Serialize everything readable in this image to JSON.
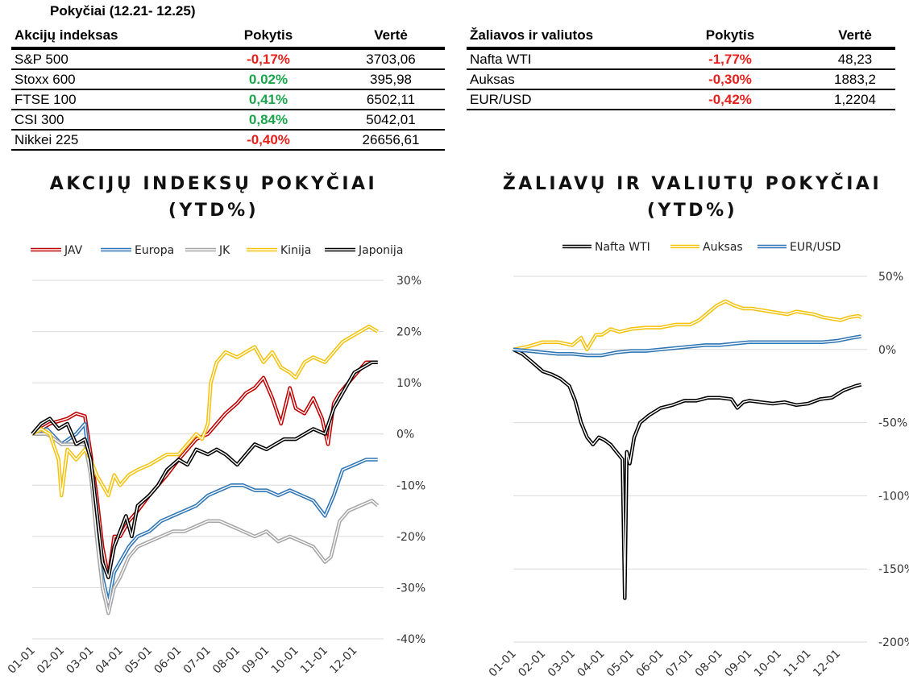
{
  "header": {
    "title": "Pokyčiai (12.21- 12.25)"
  },
  "indices_table": {
    "columns": [
      "Akcijų indeksas",
      "Pokytis",
      "Vertė"
    ],
    "rows": [
      {
        "name": "S&P 500",
        "change": "-0,17%",
        "value": "3703,06",
        "trend": "neg"
      },
      {
        "name": "Stoxx 600",
        "change": "0.02%",
        "value": "395,98",
        "trend": "pos"
      },
      {
        "name": "FTSE 100",
        "change": "0,41%",
        "value": "6502,11",
        "trend": "pos"
      },
      {
        "name": "CSI 300",
        "change": "0,84%",
        "value": "5042,01",
        "trend": "pos"
      },
      {
        "name": "Nikkei 225",
        "change": "-0,40%",
        "value": "26656,61",
        "trend": "neg"
      }
    ]
  },
  "commodities_table": {
    "columns": [
      "Žaliavos ir valiutos",
      "Pokytis",
      "Vertė"
    ],
    "rows": [
      {
        "name": "Nafta WTI",
        "change": "-1,77%",
        "value": "48,23",
        "trend": "neg"
      },
      {
        "name": "Auksas",
        "change": "-0,30%",
        "value": "1883,2",
        "trend": "neg"
      },
      {
        "name": "EUR/USD",
        "change": "-0,42%",
        "value": "1,2204",
        "trend": "neg"
      }
    ]
  },
  "colors": {
    "negative": "#e8201c",
    "positive": "#1aa54b"
  },
  "chart_data": [
    {
      "type": "line",
      "title": "AKCIJŲ INDEKSŲ POKYČIAI (YTD%)",
      "title_lines": [
        "AKCIJŲ INDEKSŲ POKYČIAI",
        "(YTD%)"
      ],
      "x_ticks": [
        "01-01",
        "02-01",
        "03-01",
        "04-01",
        "05-01",
        "06-01",
        "07-01",
        "08-01",
        "09-01",
        "10-01",
        "11-01",
        "12-01"
      ],
      "x_range": [
        0,
        12
      ],
      "ylim": [
        -40,
        30
      ],
      "y_ticks": [
        30,
        20,
        10,
        0,
        -10,
        -20,
        -30,
        -40
      ],
      "y_tick_labels": [
        "30%",
        "20%",
        "10%",
        "0%",
        "-10%",
        "-20%",
        "-30%",
        "-40%"
      ],
      "y_axis_side": "right",
      "legend_position": "top",
      "series": [
        {
          "name": "JAV",
          "color": "#c00000",
          "x": [
            0,
            0.3,
            0.6,
            0.9,
            1.2,
            1.5,
            1.8,
            2.0,
            2.2,
            2.4,
            2.6,
            2.8,
            3.0,
            3.3,
            3.6,
            4.0,
            4.3,
            4.6,
            5.0,
            5.3,
            5.6,
            6.0,
            6.3,
            6.6,
            7.0,
            7.3,
            7.6,
            7.9,
            8.2,
            8.5,
            8.8,
            9.0,
            9.3,
            9.6,
            9.9,
            10.1,
            10.3,
            10.5,
            10.8,
            11.1,
            11.4,
            11.7,
            11.8
          ],
          "y": [
            0,
            1,
            2,
            2.5,
            3,
            4,
            3.5,
            -4,
            -12,
            -22,
            -28,
            -20,
            -20,
            -17,
            -15,
            -12,
            -10,
            -8,
            -5,
            -3,
            -1,
            0,
            2,
            4,
            6,
            8,
            9,
            11,
            7,
            2,
            9,
            5,
            4,
            7,
            3,
            -2,
            6,
            8,
            10,
            12,
            14,
            14,
            14
          ]
        },
        {
          "name": "Europa",
          "color": "#2e75b6",
          "x": [
            0,
            0.5,
            1.0,
            1.5,
            1.8,
            2.0,
            2.2,
            2.4,
            2.6,
            2.8,
            3.0,
            3.3,
            3.6,
            4.0,
            4.4,
            4.8,
            5.2,
            5.6,
            6.0,
            6.4,
            6.8,
            7.2,
            7.6,
            8.0,
            8.4,
            8.8,
            9.2,
            9.6,
            10.0,
            10.3,
            10.6,
            11.0,
            11.4,
            11.8
          ],
          "y": [
            0,
            1,
            -2,
            0,
            2,
            -8,
            -18,
            -28,
            -33,
            -27,
            -25,
            -22,
            -20,
            -19,
            -17,
            -16,
            -15,
            -14,
            -12,
            -11,
            -10,
            -10,
            -11,
            -11,
            -12,
            -11,
            -12,
            -13,
            -16,
            -12,
            -7,
            -6,
            -5,
            -5
          ]
        },
        {
          "name": "JK",
          "color": "#a6a6a6",
          "x": [
            0,
            0.5,
            1.0,
            1.5,
            1.8,
            2.0,
            2.2,
            2.4,
            2.6,
            2.8,
            3.0,
            3.3,
            3.6,
            4.0,
            4.4,
            4.8,
            5.2,
            5.6,
            6.0,
            6.4,
            6.8,
            7.2,
            7.6,
            8.0,
            8.4,
            8.8,
            9.2,
            9.6,
            10.0,
            10.2,
            10.5,
            10.8,
            11.2,
            11.6,
            11.8
          ],
          "y": [
            0,
            0,
            -2,
            -2,
            -2,
            -8,
            -20,
            -30,
            -35,
            -30,
            -28,
            -24,
            -22,
            -21,
            -20,
            -19,
            -19,
            -18,
            -17,
            -17,
            -18,
            -19,
            -20,
            -19,
            -21,
            -20,
            -21,
            -22,
            -25,
            -24,
            -17,
            -15,
            -14,
            -13,
            -14
          ]
        },
        {
          "name": "Kinija",
          "color": "#f4c20d",
          "x": [
            0,
            0.3,
            0.6,
            0.9,
            1.0,
            1.2,
            1.5,
            1.8,
            2.0,
            2.2,
            2.4,
            2.6,
            2.8,
            3.0,
            3.3,
            3.6,
            4.0,
            4.3,
            4.6,
            5.0,
            5.3,
            5.6,
            5.8,
            6.0,
            6.1,
            6.3,
            6.6,
            7.0,
            7.3,
            7.6,
            7.9,
            8.2,
            8.5,
            8.8,
            9.0,
            9.3,
            9.6,
            10.0,
            10.3,
            10.6,
            10.9,
            11.2,
            11.5,
            11.8
          ],
          "y": [
            0,
            1,
            0,
            -5,
            -12,
            -3,
            -5,
            -3,
            -5,
            -8,
            -10,
            -12,
            -8,
            -10,
            -8,
            -7,
            -6,
            -5,
            -4,
            -4,
            -2,
            0,
            -1,
            2,
            10,
            14,
            16,
            15,
            16,
            17,
            14,
            16,
            13,
            12,
            11,
            14,
            15,
            14,
            16,
            18,
            19,
            20,
            21,
            20
          ]
        },
        {
          "name": "Japonija",
          "color": "#000000",
          "x": [
            0,
            0.3,
            0.6,
            0.9,
            1.2,
            1.5,
            1.8,
            2.0,
            2.2,
            2.4,
            2.6,
            2.8,
            3.0,
            3.2,
            3.4,
            3.6,
            4.0,
            4.3,
            4.6,
            5.0,
            5.3,
            5.6,
            6.0,
            6.3,
            6.6,
            7.0,
            7.3,
            7.6,
            8.0,
            8.3,
            8.6,
            9.0,
            9.3,
            9.6,
            10.0,
            10.3,
            10.6,
            11.0,
            11.3,
            11.6,
            11.8
          ],
          "y": [
            0,
            2,
            3,
            1,
            2,
            -2,
            -1,
            -5,
            -15,
            -25,
            -28,
            -22,
            -19,
            -16,
            -20,
            -14,
            -12,
            -10,
            -7,
            -5,
            -6,
            -3,
            -4,
            -3,
            -4,
            -6,
            -4,
            -2,
            -3,
            -2,
            -1,
            -1,
            0,
            1,
            0,
            5,
            8,
            12,
            13,
            14,
            14
          ]
        }
      ]
    },
    {
      "type": "line",
      "title": "ŽALIAVŲ IR VALIUTŲ POKYČIAI (YTD%)",
      "title_lines": [
        "ŽALIAVŲ IR VALIUTŲ POKYČIAI",
        "(YTD%)"
      ],
      "x_ticks": [
        "01-01",
        "02-01",
        "03-01",
        "04-01",
        "05-01",
        "06-01",
        "07-01",
        "08-01",
        "09-01",
        "10-01",
        "11-01",
        "12-01"
      ],
      "x_range": [
        0,
        12
      ],
      "ylim": [
        -200,
        50
      ],
      "y_ticks": [
        50,
        0,
        -50,
        -100,
        -150,
        -200
      ],
      "y_tick_labels": [
        "50%",
        "0%",
        "-50%",
        "-100%",
        "-150%",
        "-200%"
      ],
      "y_axis_side": "right",
      "legend_position": "top",
      "series": [
        {
          "name": "Nafta WTI",
          "color": "#000000",
          "x": [
            0,
            0.3,
            0.6,
            1.0,
            1.3,
            1.6,
            1.9,
            2.1,
            2.3,
            2.5,
            2.7,
            2.9,
            3.1,
            3.3,
            3.5,
            3.7,
            3.78,
            3.85,
            3.95,
            4.1,
            4.3,
            4.6,
            5.0,
            5.4,
            5.8,
            6.2,
            6.6,
            7.0,
            7.4,
            7.6,
            7.8,
            8.0,
            8.4,
            8.8,
            9.2,
            9.6,
            10.0,
            10.4,
            10.8,
            11.2,
            11.6,
            11.8
          ],
          "y": [
            0,
            -3,
            -8,
            -15,
            -17,
            -20,
            -25,
            -35,
            -50,
            -60,
            -65,
            -60,
            -62,
            -65,
            -70,
            -75,
            -170,
            -70,
            -78,
            -60,
            -50,
            -45,
            -40,
            -38,
            -35,
            -35,
            -33,
            -33,
            -34,
            -40,
            -36,
            -35,
            -36,
            -37,
            -36,
            -38,
            -37,
            -34,
            -33,
            -28,
            -25,
            -24
          ]
        },
        {
          "name": "Auksas",
          "color": "#f4c20d",
          "x": [
            0,
            0.5,
            1.0,
            1.5,
            2.0,
            2.3,
            2.5,
            2.8,
            3.0,
            3.3,
            3.6,
            4.0,
            4.5,
            5.0,
            5.5,
            6.0,
            6.3,
            6.6,
            6.9,
            7.2,
            7.5,
            7.8,
            8.1,
            8.4,
            8.7,
            9.0,
            9.3,
            9.6,
            9.9,
            10.2,
            10.5,
            10.8,
            11.1,
            11.4,
            11.7,
            11.8
          ],
          "y": [
            0,
            2,
            5,
            5,
            3,
            8,
            0,
            10,
            10,
            14,
            12,
            14,
            15,
            15,
            17,
            17,
            20,
            25,
            30,
            33,
            30,
            28,
            28,
            27,
            26,
            25,
            24,
            26,
            25,
            24,
            22,
            21,
            20,
            22,
            23,
            22
          ]
        },
        {
          "name": "EUR/USD",
          "color": "#2e75b6",
          "x": [
            0,
            0.5,
            1.0,
            1.5,
            2.0,
            2.5,
            3.0,
            3.5,
            4.0,
            4.5,
            5.0,
            5.5,
            6.0,
            6.5,
            7.0,
            7.5,
            8.0,
            8.5,
            9.0,
            9.5,
            10.0,
            10.5,
            11.0,
            11.5,
            11.8
          ],
          "y": [
            0,
            -1,
            -2,
            -3,
            -3,
            -4,
            -4,
            -2,
            -1,
            -1,
            0,
            1,
            2,
            3,
            3,
            4,
            5,
            5,
            5,
            5,
            5,
            5,
            6,
            8,
            9
          ]
        }
      ]
    }
  ]
}
